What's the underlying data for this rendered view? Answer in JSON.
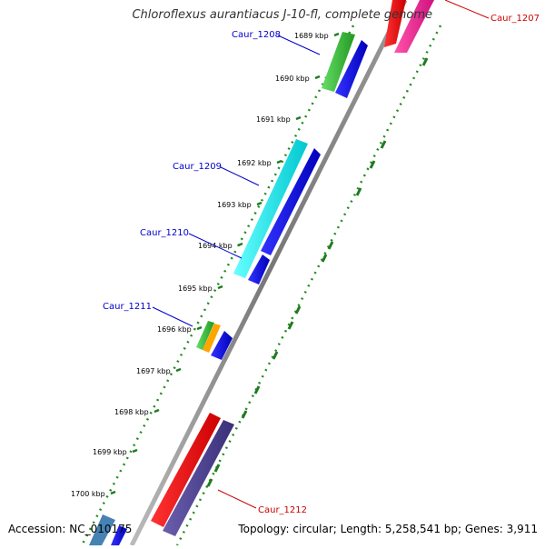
{
  "title": "Chloroflexus aurantiacus J-10-fl, complete genome",
  "accession": "Accession: NC_010175",
  "topology": "Topology: circular; Length: 5,258,541 bp; Genes: 3,911",
  "ticks": [
    "1689 kbp",
    "1690 kbp",
    "1691 kbp",
    "1692 kbp",
    "1693 kbp",
    "1694 kbp",
    "1695 kbp",
    "1696 kbp",
    "1697 kbp",
    "1698 kbp",
    "1699 kbp",
    "1700 kbp"
  ],
  "gene_labels": [
    {
      "text": "Caur_1208",
      "color": "#0000cc"
    },
    {
      "text": "Caur_1209",
      "color": "#0000cc"
    },
    {
      "text": "Caur_1210",
      "color": "#0000cc"
    },
    {
      "text": "Caur_1211",
      "color": "#0000cc"
    },
    {
      "text": "Caur_1207",
      "color": "#cc0000"
    },
    {
      "text": "Caur_1212",
      "color": "#cc0000"
    }
  ],
  "colors": {
    "backbone": "#888888",
    "gc_dots": "#228b22",
    "green": "#33bb33",
    "cyan": "#00e5ee",
    "blue": "#0000ee",
    "red": "#ee0000",
    "pink": "#ee1493",
    "orange": "#ffa500",
    "slate": "#4b3f8f",
    "steel": "#4682b4"
  }
}
